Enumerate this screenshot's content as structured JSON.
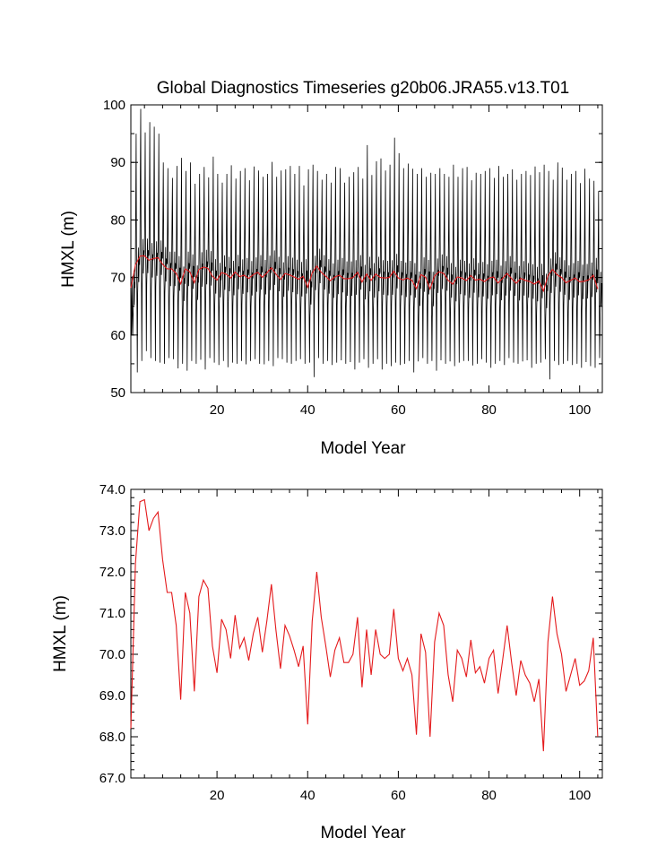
{
  "colors": {
    "monthly_line": "#000000",
    "annual_line": "#e41a1c",
    "axis": "#000000"
  },
  "chart_data": [
    {
      "type": "line",
      "title": "Global Diagnostics Timeseries g20b06.JRA55.v13.T01",
      "xlabel": "Model Year",
      "ylabel": "HMXL (m)",
      "xlim": [
        1,
        105
      ],
      "ylim": [
        50,
        100
      ],
      "xticks": [
        20,
        40,
        60,
        80,
        100
      ],
      "xtick_labels": [
        "20",
        "40",
        "60",
        "80",
        "100"
      ],
      "yticks": [
        50,
        60,
        70,
        80,
        90,
        100
      ],
      "ytick_labels": [
        "50",
        "60",
        "70",
        "80",
        "90",
        "100"
      ],
      "grid": false,
      "legend": "none",
      "series": [
        {
          "role": "monthly",
          "color": "#000000",
          "annual_peak": [
            60.0,
            95.0,
            99.3,
            95.2,
            97.0,
            96.2,
            95.0,
            90.0,
            89.0,
            87.3,
            89.4,
            90.8,
            88.5,
            90.0,
            86.3,
            88.0,
            89.2,
            87.4,
            91.0,
            88.0,
            86.5,
            88.0,
            89.5,
            87.2,
            88.5,
            89.0,
            86.9,
            89.3,
            88.6,
            87.5,
            88.0,
            90.1,
            87.5,
            88.6,
            88.8,
            89.4,
            88.0,
            89.4,
            86.0,
            88.8,
            89.6,
            88.5,
            87.0,
            88.0,
            86.5,
            89.2,
            89.0,
            86.5,
            87.5,
            88.3,
            89.2,
            87.2,
            93.0,
            87.8,
            90.2,
            90.7,
            88.6,
            89.6,
            94.3,
            91.6,
            89.0,
            89.8,
            88.9,
            88.0,
            89.0,
            87.5,
            88.2,
            88.0,
            89.0,
            88.0,
            87.5,
            89.6,
            87.5,
            89.0,
            89.2,
            86.9,
            88.2,
            88.0,
            88.5,
            89.0,
            87.3,
            89.4,
            87.5,
            88.0,
            88.8,
            87.0,
            88.0,
            88.5,
            87.8,
            89.3,
            88.3,
            89.6,
            88.5,
            87.0,
            90.0,
            89.1,
            87.0,
            88.0,
            88.5,
            86.4,
            88.9,
            87.2,
            86.8,
            85.0
          ],
          "annual_trough": [
            60.0,
            53.5,
            55.5,
            57.2,
            56.0,
            55.5,
            55.2,
            55.0,
            56.0,
            55.8,
            54.2,
            55.0,
            53.8,
            55.5,
            55.0,
            55.7,
            54.0,
            56.0,
            55.2,
            54.8,
            55.5,
            54.4,
            55.2,
            55.0,
            55.5,
            54.9,
            55.5,
            55.8,
            55.0,
            54.9,
            55.5,
            54.6,
            56.0,
            55.8,
            55.2,
            55.0,
            55.5,
            55.8,
            55.0,
            55.2,
            52.7,
            56.0,
            55.0,
            55.5,
            54.8,
            55.2,
            55.6,
            55.0,
            55.3,
            54.0,
            55.2,
            55.8,
            54.3,
            55.0,
            55.8,
            54.0,
            55.0,
            54.6,
            55.2,
            54.8,
            55.0,
            55.5,
            53.5,
            55.4,
            56.0,
            55.0,
            55.5,
            53.8,
            55.6,
            55.0,
            55.4,
            54.6,
            55.2,
            55.5,
            55.5,
            54.7,
            55.0,
            55.8,
            55.2,
            54.3,
            55.0,
            55.5,
            54.8,
            56.0,
            55.2,
            55.0,
            55.4,
            55.6,
            54.3,
            55.0,
            55.2,
            55.8,
            52.3,
            55.5,
            54.8,
            55.0,
            55.5,
            54.8,
            55.0,
            54.3,
            55.3,
            54.6,
            54.3,
            56.0
          ]
        },
        {
          "role": "annual mean",
          "color": "#e41a1c",
          "x": [
            1,
            2,
            3,
            4,
            5,
            6,
            7,
            8,
            9,
            10,
            11,
            12,
            13,
            14,
            15,
            16,
            17,
            18,
            19,
            20,
            21,
            22,
            23,
            24,
            25,
            26,
            27,
            28,
            29,
            30,
            31,
            32,
            33,
            34,
            35,
            36,
            37,
            38,
            39,
            40,
            41,
            42,
            43,
            44,
            45,
            46,
            47,
            48,
            49,
            50,
            51,
            52,
            53,
            54,
            55,
            56,
            57,
            58,
            59,
            60,
            61,
            62,
            63,
            64,
            65,
            66,
            67,
            68,
            69,
            70,
            71,
            72,
            73,
            74,
            75,
            76,
            77,
            78,
            79,
            80,
            81,
            82,
            83,
            84,
            85,
            86,
            87,
            88,
            89,
            90,
            91,
            92,
            93,
            94,
            95,
            96,
            97,
            98,
            99,
            100,
            101,
            102,
            103,
            104
          ],
          "values": [
            68.2,
            72.2,
            73.7,
            73.75,
            73.0,
            73.3,
            73.45,
            72.3,
            71.5,
            71.5,
            70.7,
            68.9,
            71.5,
            71.0,
            69.1,
            71.4,
            71.8,
            71.6,
            70.2,
            69.55,
            70.85,
            70.6,
            69.9,
            70.95,
            70.15,
            70.4,
            69.85,
            70.5,
            70.9,
            70.05,
            70.8,
            71.7,
            70.6,
            69.65,
            70.7,
            70.45,
            70.1,
            69.7,
            70.2,
            68.3,
            70.8,
            72.0,
            70.9,
            70.2,
            69.45,
            70.1,
            70.4,
            69.8,
            69.8,
            70.0,
            70.9,
            69.2,
            70.6,
            69.5,
            70.6,
            70.0,
            69.9,
            70.0,
            71.1,
            69.9,
            69.6,
            69.9,
            69.5,
            68.05,
            70.5,
            70.05,
            68.0,
            70.3,
            71.0,
            70.7,
            69.5,
            68.85,
            70.1,
            69.9,
            69.45,
            70.35,
            69.55,
            69.7,
            69.3,
            69.9,
            70.1,
            69.05,
            69.85,
            70.7,
            69.8,
            69.0,
            69.85,
            69.5,
            69.3,
            68.85,
            69.4,
            67.65,
            70.3,
            71.4,
            70.5,
            70.0,
            69.1,
            69.5,
            69.9,
            69.25,
            69.35,
            69.6,
            70.4,
            68.0
          ]
        }
      ]
    },
    {
      "type": "line",
      "title": "",
      "xlabel": "Model Year",
      "ylabel": "HMXL (m)",
      "xlim": [
        1,
        105
      ],
      "ylim": [
        67.0,
        74.0
      ],
      "xticks": [
        20,
        40,
        60,
        80,
        100
      ],
      "xtick_labels": [
        "20",
        "40",
        "60",
        "80",
        "100"
      ],
      "yticks": [
        67.0,
        68.0,
        69.0,
        70.0,
        71.0,
        72.0,
        73.0,
        74.0
      ],
      "ytick_labels": [
        "67.0",
        "68.0",
        "69.0",
        "70.0",
        "71.0",
        "72.0",
        "73.0",
        "74.0"
      ],
      "grid": false,
      "legend": "none",
      "series": [
        {
          "role": "annual mean",
          "color": "#e41a1c",
          "x": [
            1,
            2,
            3,
            4,
            5,
            6,
            7,
            8,
            9,
            10,
            11,
            12,
            13,
            14,
            15,
            16,
            17,
            18,
            19,
            20,
            21,
            22,
            23,
            24,
            25,
            26,
            27,
            28,
            29,
            30,
            31,
            32,
            33,
            34,
            35,
            36,
            37,
            38,
            39,
            40,
            41,
            42,
            43,
            44,
            45,
            46,
            47,
            48,
            49,
            50,
            51,
            52,
            53,
            54,
            55,
            56,
            57,
            58,
            59,
            60,
            61,
            62,
            63,
            64,
            65,
            66,
            67,
            68,
            69,
            70,
            71,
            72,
            73,
            74,
            75,
            76,
            77,
            78,
            79,
            80,
            81,
            82,
            83,
            84,
            85,
            86,
            87,
            88,
            89,
            90,
            91,
            92,
            93,
            94,
            95,
            96,
            97,
            98,
            99,
            100,
            101,
            102,
            103,
            104
          ],
          "values": [
            68.2,
            72.2,
            73.7,
            73.75,
            73.0,
            73.3,
            73.45,
            72.3,
            71.5,
            71.5,
            70.7,
            68.9,
            71.5,
            71.0,
            69.1,
            71.4,
            71.8,
            71.6,
            70.2,
            69.55,
            70.85,
            70.6,
            69.9,
            70.95,
            70.15,
            70.4,
            69.85,
            70.5,
            70.9,
            70.05,
            70.8,
            71.7,
            70.6,
            69.65,
            70.7,
            70.45,
            70.1,
            69.7,
            70.2,
            68.3,
            70.8,
            72.0,
            70.9,
            70.2,
            69.45,
            70.1,
            70.4,
            69.8,
            69.8,
            70.0,
            70.9,
            69.2,
            70.6,
            69.5,
            70.6,
            70.0,
            69.9,
            70.0,
            71.1,
            69.9,
            69.6,
            69.9,
            69.5,
            68.05,
            70.5,
            70.05,
            68.0,
            70.3,
            71.0,
            70.7,
            69.5,
            68.85,
            70.1,
            69.9,
            69.45,
            70.35,
            69.55,
            69.7,
            69.3,
            69.9,
            70.1,
            69.05,
            69.85,
            70.7,
            69.8,
            69.0,
            69.85,
            69.5,
            69.3,
            68.85,
            69.4,
            67.65,
            70.3,
            71.4,
            70.5,
            70.0,
            69.1,
            69.5,
            69.9,
            69.25,
            69.35,
            69.6,
            70.4,
            68.0
          ]
        }
      ]
    }
  ]
}
